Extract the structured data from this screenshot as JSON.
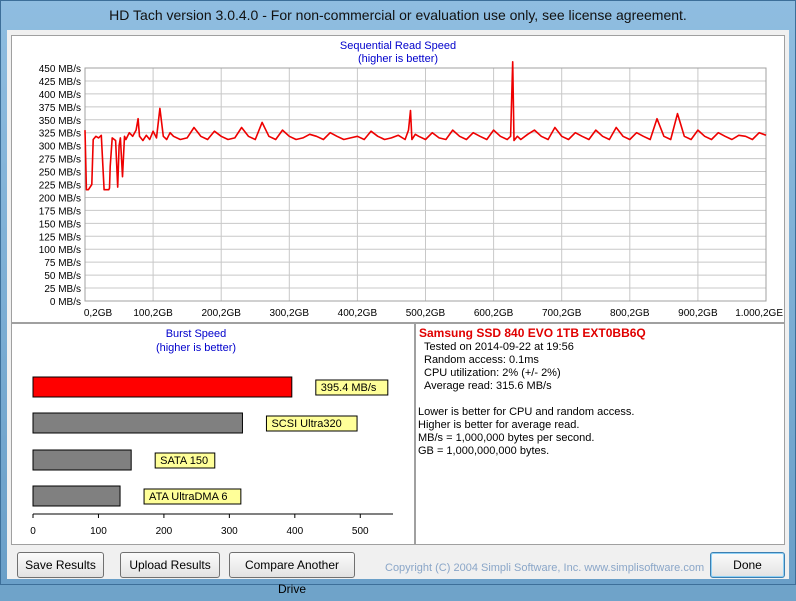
{
  "window": {
    "title": "HD Tach version 3.0.4.0  - For non-commercial or evaluation use only, see license agreement."
  },
  "chart_data": [
    {
      "type": "line",
      "title": "Sequential Read Speed",
      "subtitle": "(higher is better)",
      "y_unit": "MB/s",
      "ylim": [
        0,
        450
      ],
      "yticks": [
        "0 MB/s",
        "25 MB/s",
        "50 MB/s",
        "75 MB/s",
        "100 MB/s",
        "125 MB/s",
        "150 MB/s",
        "175 MB/s",
        "200 MB/s",
        "225 MB/s",
        "250 MB/s",
        "275 MB/s",
        "300 MB/s",
        "325 MB/s",
        "350 MB/s",
        "375 MB/s",
        "400 MB/s",
        "425 MB/s",
        "450 MB/s"
      ],
      "xlim": [
        0,
        1000
      ],
      "xticks": [
        "0,2GB",
        "100,2GB",
        "200,2GB",
        "300,2GB",
        "400,2GB",
        "500,2GB",
        "600,2GB",
        "700,2GB",
        "800,2GB",
        "900,2GB",
        "1.000,2GE"
      ],
      "grid": true,
      "color": "#ee0000",
      "series": [
        {
          "x": [
            0,
            2,
            5,
            10,
            12,
            16,
            20,
            24,
            28,
            32,
            35,
            36,
            37,
            40,
            45,
            48,
            50,
            52,
            55,
            58,
            60,
            65,
            70,
            75,
            78,
            80,
            85,
            90,
            95,
            100,
            105,
            110,
            115,
            120,
            125,
            130,
            140,
            150,
            160,
            170,
            180,
            190,
            200,
            210,
            220,
            230,
            240,
            250,
            260,
            270,
            280,
            290,
            300,
            310,
            320,
            330,
            340,
            350,
            360,
            370,
            380,
            390,
            400,
            410,
            420,
            430,
            440,
            450,
            460,
            470,
            475,
            478,
            480,
            485,
            490,
            500,
            510,
            520,
            530,
            540,
            550,
            560,
            570,
            580,
            590,
            600,
            610,
            620,
            625,
            628,
            630,
            635,
            640,
            650,
            660,
            670,
            680,
            690,
            700,
            710,
            720,
            730,
            740,
            750,
            760,
            770,
            780,
            790,
            800,
            810,
            820,
            830,
            840,
            850,
            860,
            870,
            880,
            890,
            900,
            910,
            920,
            930,
            940,
            950,
            960,
            970,
            980,
            990,
            1000
          ],
          "y": [
            330,
            215,
            215,
            225,
            312,
            318,
            315,
            320,
            215,
            215,
            215,
            218,
            260,
            315,
            310,
            220,
            300,
            315,
            240,
            318,
            312,
            325,
            318,
            330,
            352,
            318,
            310,
            320,
            312,
            328,
            315,
            372,
            318,
            312,
            325,
            318,
            312,
            315,
            335,
            318,
            312,
            328,
            318,
            312,
            315,
            335,
            318,
            312,
            345,
            318,
            312,
            330,
            318,
            312,
            315,
            322,
            318,
            312,
            325,
            318,
            312,
            315,
            318,
            312,
            328,
            318,
            312,
            315,
            320,
            312,
            330,
            368,
            312,
            322,
            318,
            312,
            325,
            315,
            312,
            330,
            318,
            312,
            325,
            318,
            312,
            330,
            318,
            312,
            318,
            462,
            310,
            318,
            312,
            322,
            330,
            318,
            312,
            335,
            318,
            312,
            325,
            318,
            312,
            330,
            318,
            312,
            335,
            318,
            312,
            325,
            318,
            312,
            352,
            318,
            312,
            362,
            318,
            312,
            330,
            318,
            312,
            325,
            318,
            312,
            320,
            318,
            312,
            325,
            320
          ]
        }
      ]
    },
    {
      "type": "bar",
      "orientation": "horizontal",
      "title": "Burst Speed",
      "subtitle": "(higher is better)",
      "xlim": [
        0,
        550
      ],
      "xticks": [
        0,
        100,
        200,
        300,
        400,
        500
      ],
      "categories": [
        "395.4 MB/s",
        "SCSI Ultra320",
        "SATA 150",
        "ATA UltraDMA 6"
      ],
      "values": [
        395.4,
        320,
        150,
        133
      ],
      "colors": [
        "#ff0000",
        "#808080",
        "#808080",
        "#808080"
      ],
      "label_color": "#ffff99"
    }
  ],
  "info": {
    "drive_name": "Samsung SSD 840 EVO 1TB EXT0BB6Q",
    "lines": [
      "Tested on 2014-09-22 at 19:56",
      "Random access: 0.1ms",
      "CPU utilization: 2% (+/- 2%)",
      "Average read: 315.6 MB/s"
    ],
    "notes": [
      "Lower is better for CPU and random access.",
      "Higher is better for average read.",
      "MB/s = 1,000,000 bytes per second.",
      "GB = 1,000,000,000 bytes."
    ]
  },
  "buttons": {
    "save": "Save Results",
    "upload": "Upload Results",
    "compare": "Compare Another Drive",
    "done": "Done"
  },
  "copyright": "Copyright (C) 2004 Simpli Software, Inc. www.simplisoftware.com"
}
